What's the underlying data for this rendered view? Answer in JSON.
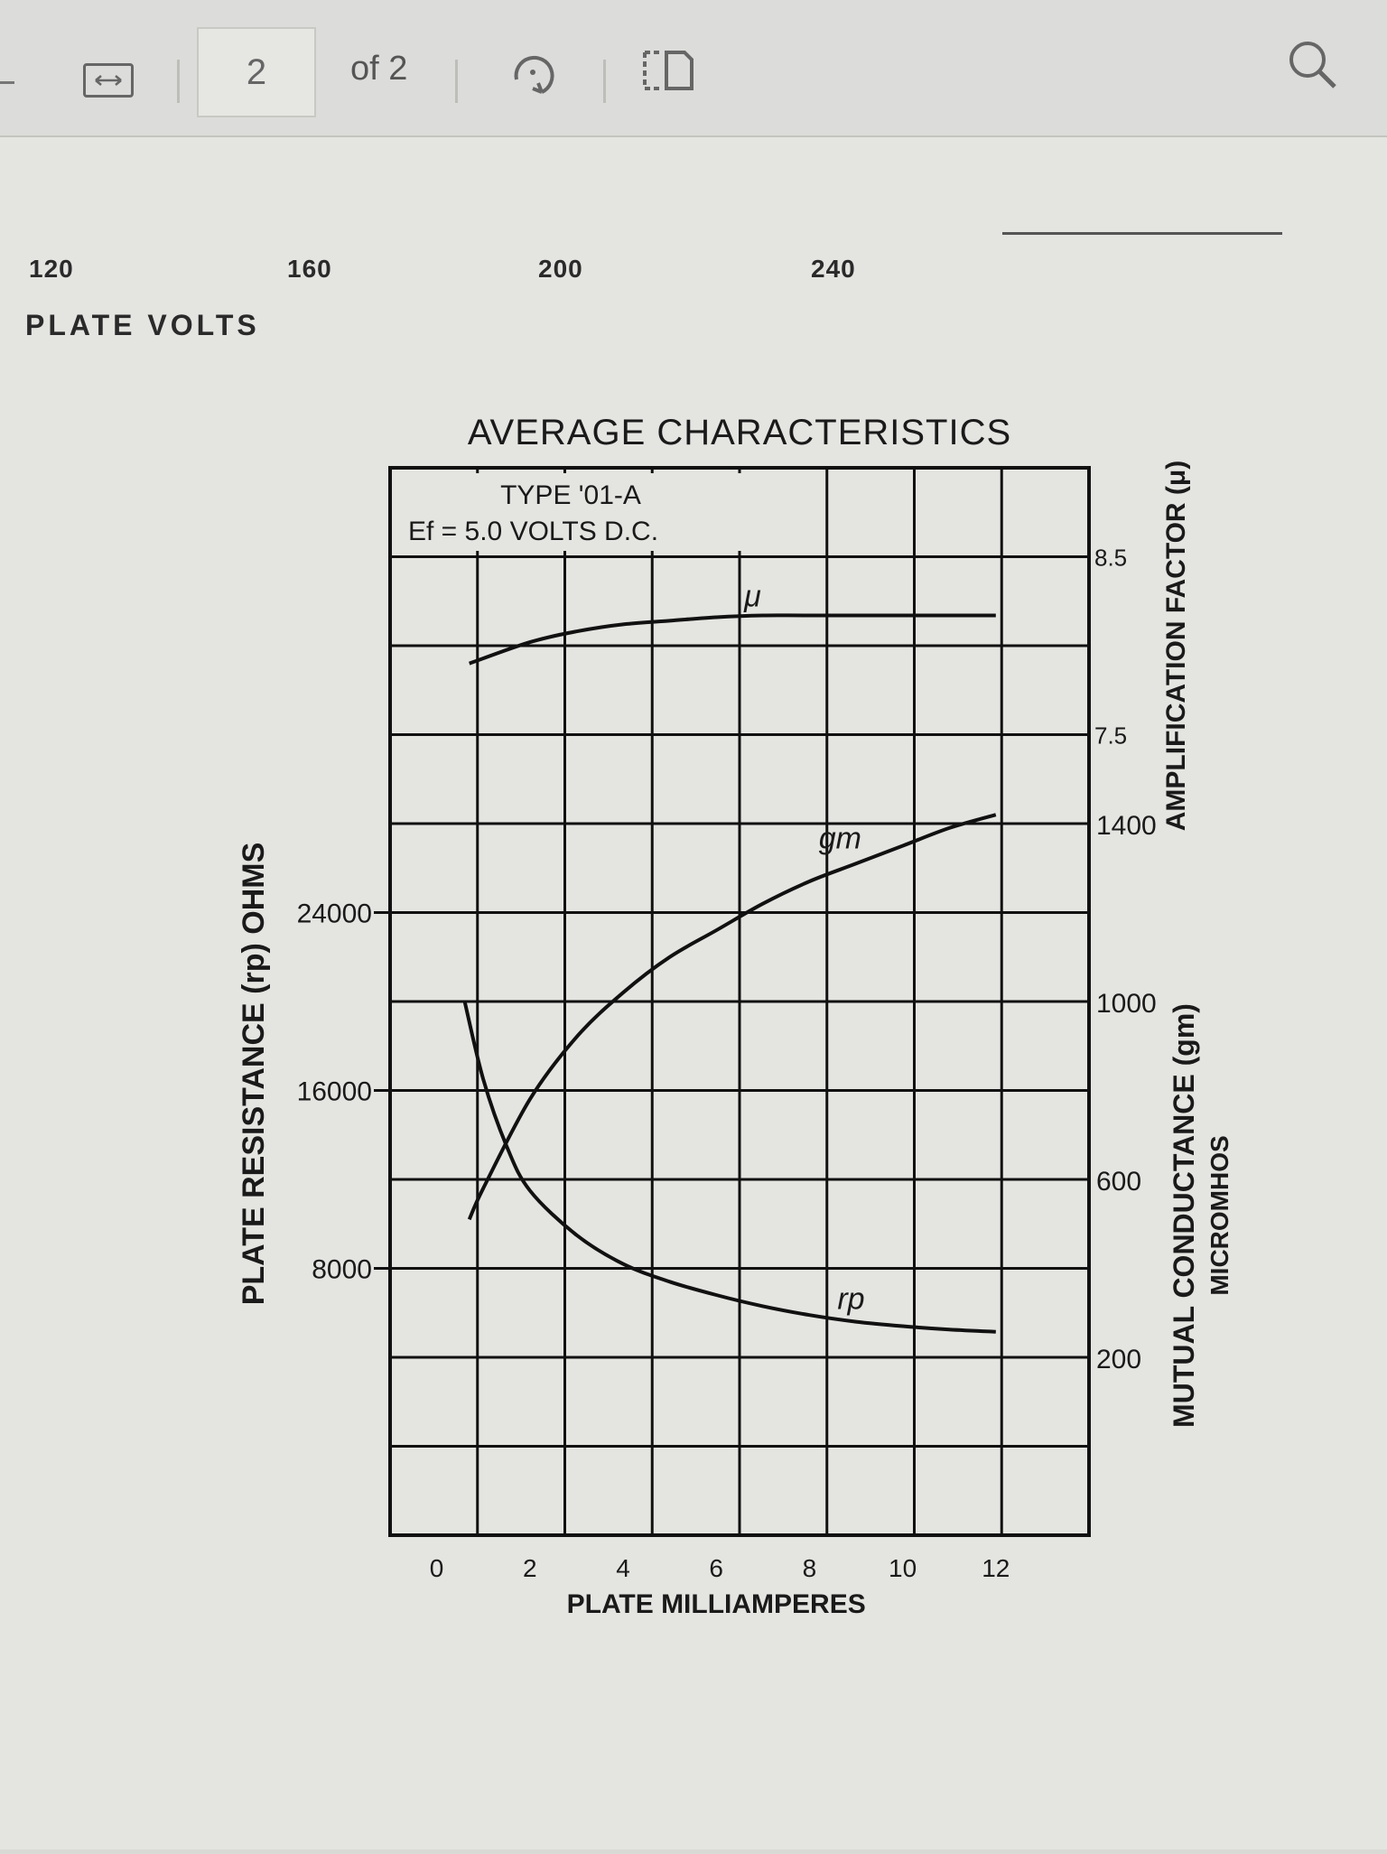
{
  "toolbar": {
    "fit_icon": "fit-width-icon",
    "page_number": "2",
    "page_of": "of 2",
    "rotate_icon": "rotate-icon",
    "two_page_icon": "two-page-view-icon",
    "search_icon": "search-icon"
  },
  "previous_chart": {
    "x_ticks": [
      "120",
      "160",
      "200",
      "240"
    ],
    "x_label": "PLATE VOLTS"
  },
  "chart_data": {
    "type": "line",
    "title": "AVERAGE CHARACTERISTICS",
    "subtitle_line1": "TYPE '01-A",
    "subtitle_line2": "Ef = 5.0 VOLTS D.C.",
    "xlabel": "PLATE   MILLIAMPERES",
    "x_ticks": [
      "0",
      "2",
      "4",
      "6",
      "8",
      "10",
      "12"
    ],
    "xlim": [
      -1,
      14
    ],
    "ylabel_left": "PLATE RESISTANCE (rp) OHMS",
    "left_ticks": [
      {
        "label": "8000",
        "value": 8000
      },
      {
        "label": "16000",
        "value": 16000
      },
      {
        "label": "24000",
        "value": 24000
      }
    ],
    "ylabel_right_top": "AMPLIFICATION FACTOR (μ)",
    "right_top_ticks": [
      {
        "label": "7.5",
        "value": 7.5
      },
      {
        "label": "8.5",
        "value": 8.5
      }
    ],
    "ylabel_right_bottom_line1": "MUTUAL CONDUCTANCE (gm)",
    "ylabel_right_bottom_line2": "MICROMHOS",
    "right_bottom_ticks": [
      {
        "label": "200",
        "value": 200
      },
      {
        "label": "600",
        "value": 600
      },
      {
        "label": "1000",
        "value": 1000
      },
      {
        "label": "1400",
        "value": 1400
      }
    ],
    "grid": true,
    "series": [
      {
        "name": "μ",
        "axis": "right_top",
        "x": [
          0.7,
          2,
          3,
          4,
          5,
          6,
          7,
          8,
          10,
          12
        ],
        "y": [
          7.9,
          8.02,
          8.08,
          8.12,
          8.14,
          8.16,
          8.17,
          8.17,
          8.17,
          8.17
        ]
      },
      {
        "name": "gm",
        "axis": "right_bottom",
        "x": [
          0.7,
          1,
          2,
          3,
          4,
          5,
          6,
          7,
          8,
          9,
          10,
          11,
          12
        ],
        "y": [
          510,
          580,
          780,
          920,
          1020,
          1100,
          1160,
          1220,
          1270,
          1310,
          1350,
          1390,
          1420
        ]
      },
      {
        "name": "rp",
        "axis": "left",
        "x": [
          0.6,
          1,
          1.5,
          2,
          3,
          4,
          5,
          6,
          7,
          8,
          9,
          10,
          11,
          12
        ],
        "y": [
          20000,
          16500,
          13500,
          11500,
          9500,
          8200,
          7400,
          6800,
          6300,
          5900,
          5600,
          5400,
          5250,
          5150
        ]
      }
    ]
  }
}
